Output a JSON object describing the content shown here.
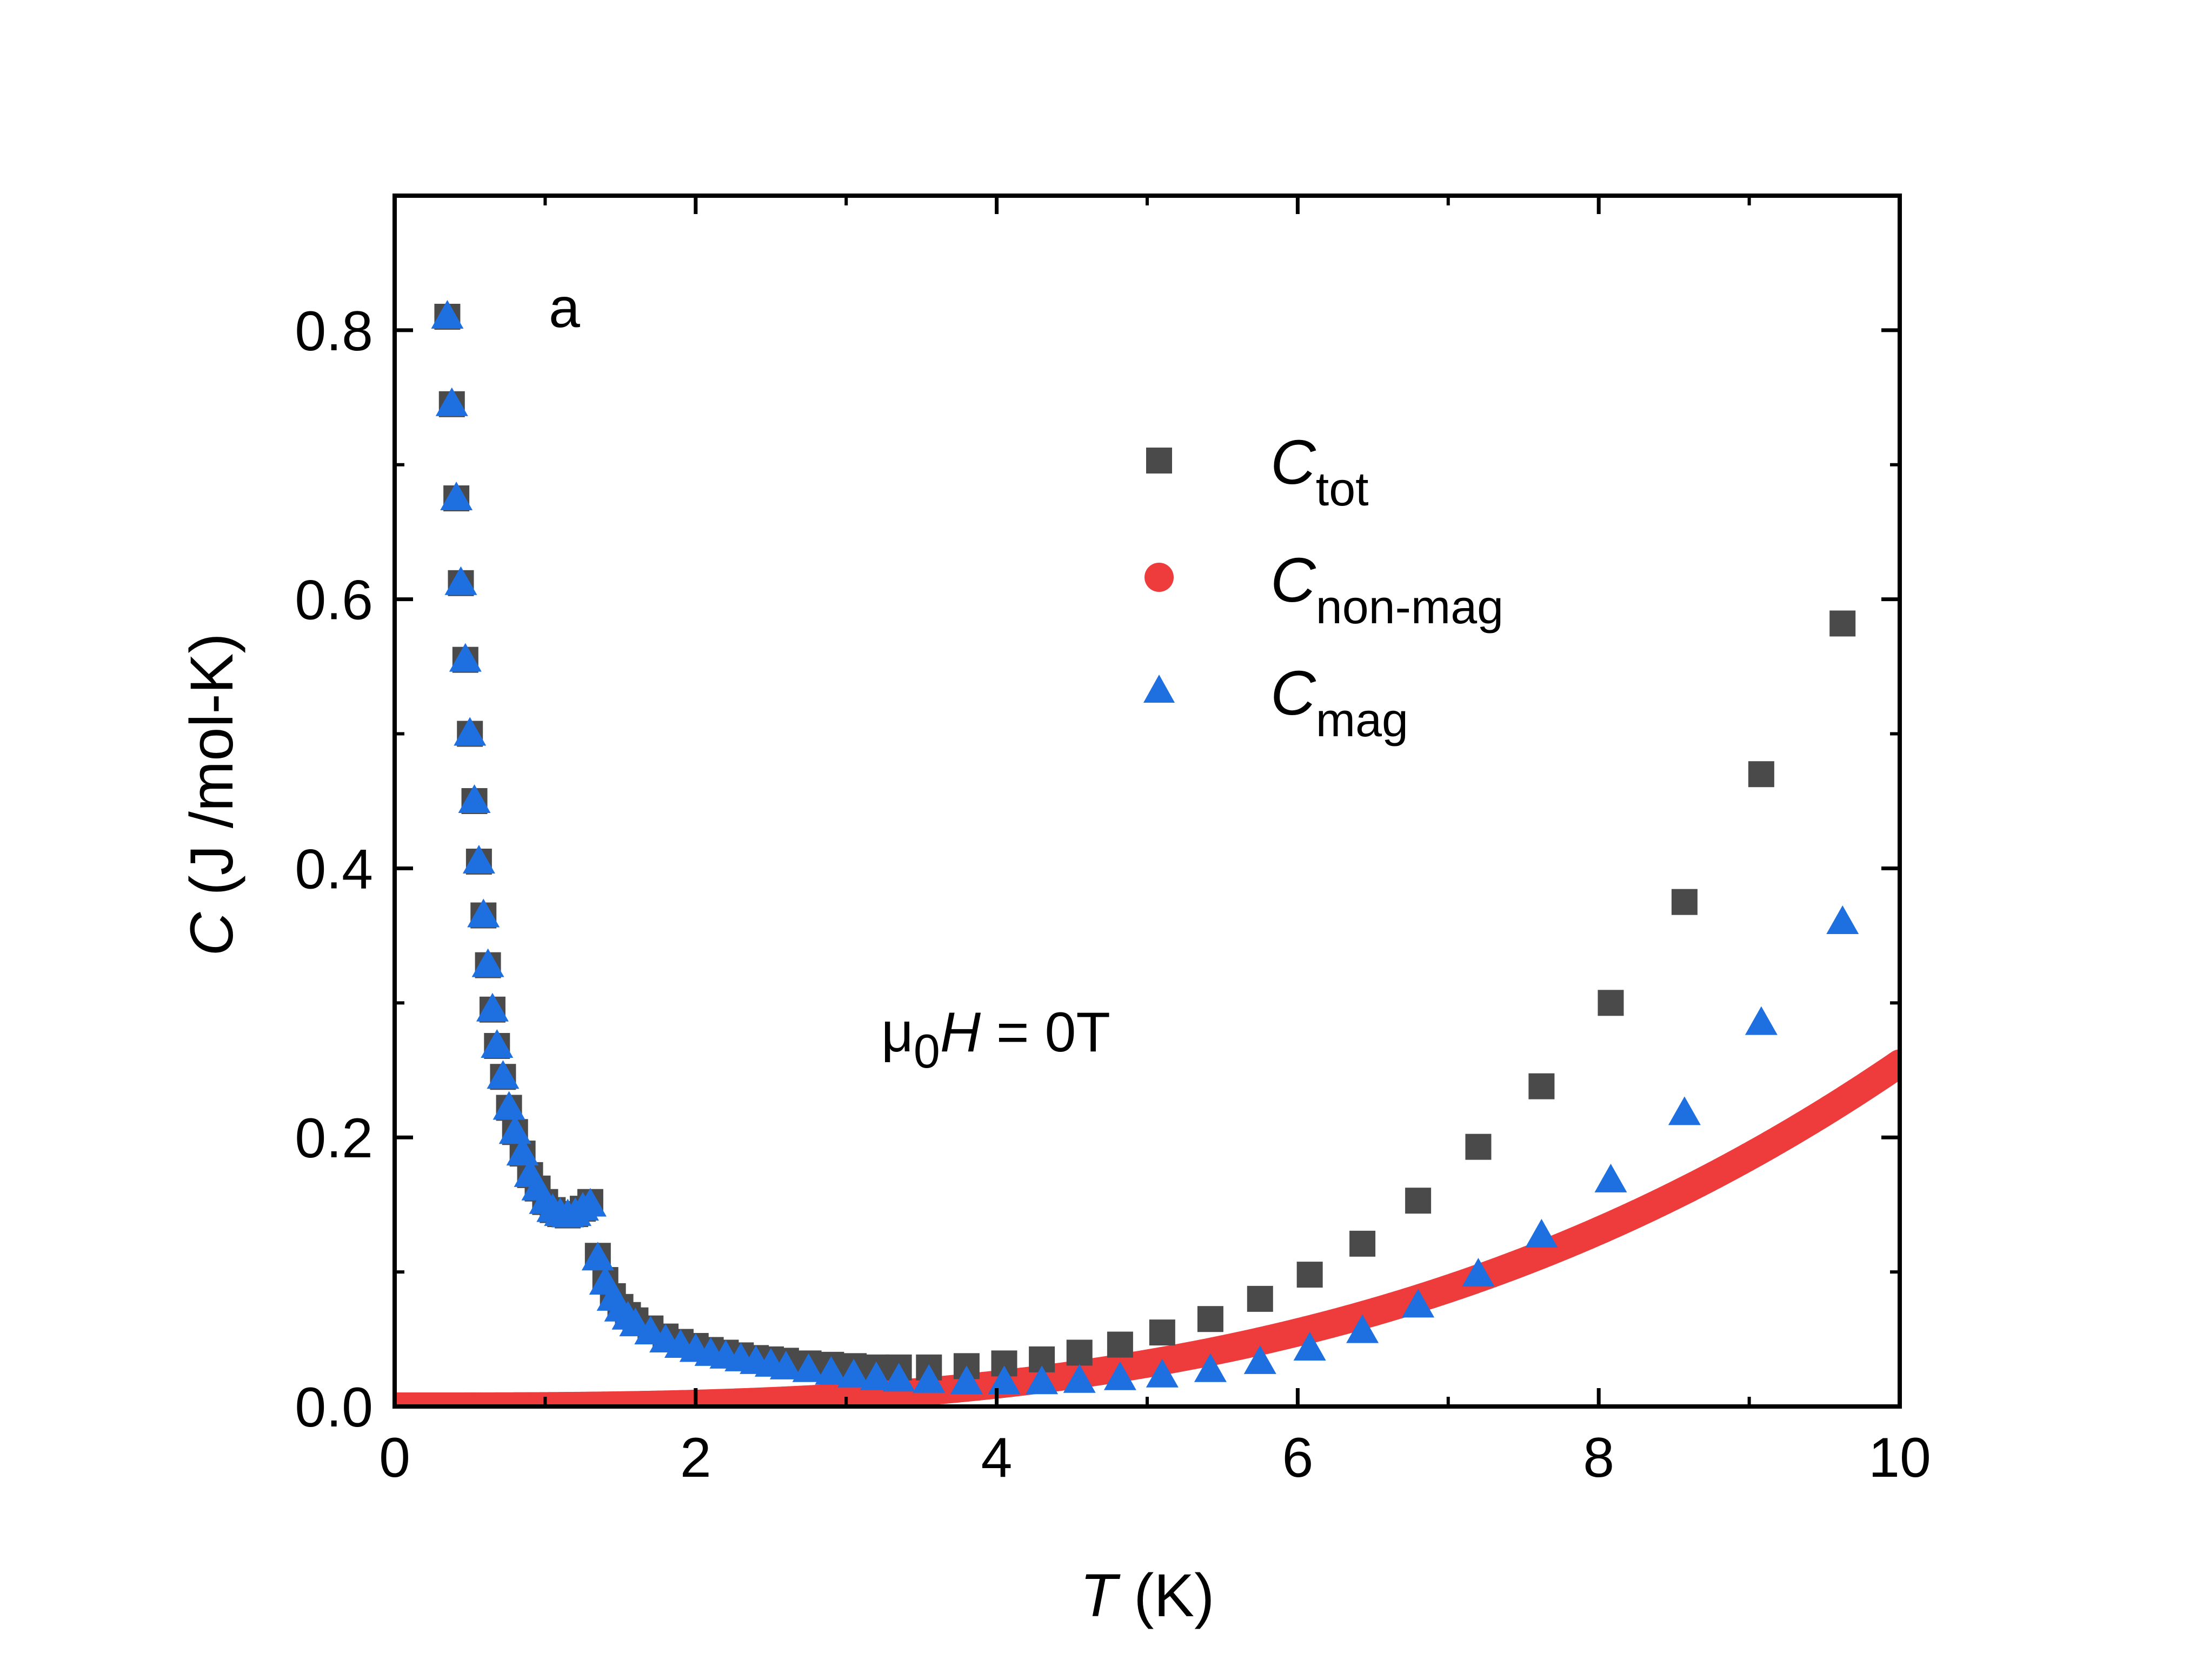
{
  "chart_data": {
    "type": "scatter",
    "panel_label": "a",
    "annotation": {
      "prefix": "μ",
      "sub": "0",
      "var": "H",
      "suffix": " = 0T"
    },
    "xlabel": {
      "var": "T",
      "unit": " (K)"
    },
    "ylabel": {
      "var": "C",
      "unit": " (J /mol-K)"
    },
    "xlim": [
      0,
      10
    ],
    "ylim": [
      0,
      0.9
    ],
    "xticks": [
      0,
      2,
      4,
      6,
      8,
      10
    ],
    "xtick_labels": [
      "0",
      "2",
      "4",
      "6",
      "8",
      "10"
    ],
    "yticks": [
      0.0,
      0.2,
      0.4,
      0.6,
      0.8
    ],
    "ytick_labels": [
      "0.0",
      "0.2",
      "0.4",
      "0.6",
      "0.8"
    ],
    "legend_placement": "upper-right",
    "series": [
      {
        "name": "C_tot",
        "label_main": "C",
        "label_sub": "tot",
        "marker": "square",
        "color": "#4a4a4a",
        "x": [
          0.35,
          0.38,
          0.41,
          0.44,
          0.47,
          0.5,
          0.53,
          0.56,
          0.59,
          0.62,
          0.65,
          0.68,
          0.72,
          0.76,
          0.8,
          0.85,
          0.9,
          0.95,
          1.0,
          1.05,
          1.1,
          1.15,
          1.2,
          1.25,
          1.3,
          1.35,
          1.4,
          1.45,
          1.5,
          1.55,
          1.6,
          1.7,
          1.8,
          1.9,
          2.0,
          2.1,
          2.2,
          2.3,
          2.4,
          2.5,
          2.6,
          2.75,
          2.9,
          3.05,
          3.2,
          3.35,
          3.55,
          3.8,
          4.05,
          4.3,
          4.55,
          4.82,
          5.1,
          5.42,
          5.75,
          6.08,
          6.43,
          6.8,
          7.2,
          7.62,
          8.08,
          8.57,
          9.08,
          9.62
        ],
        "y": [
          0.81,
          0.745,
          0.675,
          0.612,
          0.555,
          0.5,
          0.45,
          0.405,
          0.365,
          0.328,
          0.295,
          0.268,
          0.245,
          0.222,
          0.204,
          0.188,
          0.172,
          0.162,
          0.152,
          0.146,
          0.143,
          0.142,
          0.143,
          0.147,
          0.152,
          0.112,
          0.094,
          0.082,
          0.074,
          0.068,
          0.064,
          0.058,
          0.052,
          0.048,
          0.045,
          0.042,
          0.04,
          0.038,
          0.036,
          0.035,
          0.034,
          0.032,
          0.031,
          0.03,
          0.029,
          0.029,
          0.029,
          0.03,
          0.032,
          0.035,
          0.04,
          0.046,
          0.055,
          0.065,
          0.08,
          0.098,
          0.121,
          0.153,
          0.193,
          0.238,
          0.3,
          0.375,
          0.47,
          0.582
        ]
      },
      {
        "name": "C_non-mag",
        "label_main": "C",
        "label_sub": "non-mag",
        "marker": "circle",
        "color": "#ee3b3b",
        "model": "cubic",
        "coefficient": 0.000255
      },
      {
        "name": "C_mag",
        "label_main": "C",
        "label_sub": "mag",
        "marker": "triangle",
        "color": "#1e6fe0",
        "x": [
          0.35,
          0.38,
          0.41,
          0.44,
          0.47,
          0.5,
          0.53,
          0.56,
          0.59,
          0.62,
          0.65,
          0.68,
          0.72,
          0.76,
          0.8,
          0.85,
          0.9,
          0.95,
          1.0,
          1.05,
          1.1,
          1.15,
          1.2,
          1.25,
          1.3,
          1.35,
          1.4,
          1.45,
          1.5,
          1.55,
          1.6,
          1.7,
          1.8,
          1.9,
          2.0,
          2.1,
          2.2,
          2.3,
          2.4,
          2.5,
          2.6,
          2.75,
          2.9,
          3.05,
          3.2,
          3.35,
          3.55,
          3.8,
          4.05,
          4.3,
          4.55,
          4.82,
          5.1,
          5.42,
          5.75,
          6.08,
          6.43,
          6.8,
          7.2,
          7.62,
          8.08,
          8.57,
          9.08,
          9.62
        ],
        "y": [
          0.81,
          0.745,
          0.675,
          0.612,
          0.555,
          0.5,
          0.45,
          0.405,
          0.365,
          0.328,
          0.295,
          0.268,
          0.245,
          0.222,
          0.204,
          0.188,
          0.172,
          0.162,
          0.152,
          0.146,
          0.143,
          0.142,
          0.143,
          0.147,
          0.15,
          0.11,
          0.092,
          0.08,
          0.072,
          0.066,
          0.061,
          0.055,
          0.049,
          0.045,
          0.042,
          0.039,
          0.037,
          0.035,
          0.033,
          0.031,
          0.029,
          0.027,
          0.025,
          0.023,
          0.021,
          0.02,
          0.019,
          0.018,
          0.018,
          0.018,
          0.019,
          0.021,
          0.023,
          0.027,
          0.033,
          0.043,
          0.056,
          0.075,
          0.098,
          0.127,
          0.168,
          0.218,
          0.285,
          0.36
        ]
      }
    ]
  }
}
